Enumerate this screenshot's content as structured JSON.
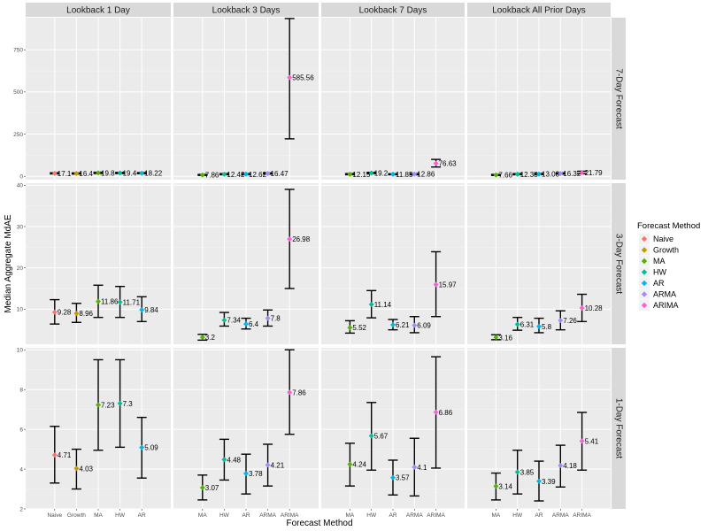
{
  "chart_data": {
    "type": "scatter",
    "title": "",
    "xlabel": "Forecast Method",
    "ylabel": "Median Aggregate MdAE",
    "grid": true,
    "legend": {
      "title": "Forecast Method",
      "position": "right",
      "entries": [
        {
          "name": "Naive",
          "color": "#F8766D"
        },
        {
          "name": "Growth",
          "color": "#C49A00"
        },
        {
          "name": "MA",
          "color": "#53B400"
        },
        {
          "name": "HW",
          "color": "#00C094"
        },
        {
          "name": "AR",
          "color": "#00B6EB"
        },
        {
          "name": "ARMA",
          "color": "#A58AFF"
        },
        {
          "name": "ARIMA",
          "color": "#FB61D7"
        }
      ]
    },
    "columns": [
      {
        "label": "Lookback 1 Day",
        "methods": [
          "Naive",
          "Growth",
          "MA",
          "HW",
          "AR"
        ]
      },
      {
        "label": "Lookback 3 Days",
        "methods": [
          "MA",
          "HW",
          "AR",
          "ARMA",
          "ARIMA"
        ]
      },
      {
        "label": "Lookback 7 Days",
        "methods": [
          "MA",
          "HW",
          "AR",
          "ARMA",
          "ARIMA"
        ]
      },
      {
        "label": "Lookback All Prior Days",
        "methods": [
          "MA",
          "HW",
          "AR",
          "ARMA",
          "ARIMA"
        ]
      }
    ],
    "rows": [
      {
        "label": "7-Day Forecast",
        "ylim": [
          -20,
          940
        ],
        "yticks": [
          0,
          250,
          500,
          750
        ],
        "panels": [
          [
            {
              "m": "Naive",
              "y": 17.1,
              "lo": 14,
              "hi": 21,
              "label": "17.1"
            },
            {
              "m": "Growth",
              "y": 16.4,
              "lo": 13,
              "hi": 20,
              "label": "16.4"
            },
            {
              "m": "MA",
              "y": 19.8,
              "lo": 16,
              "hi": 24,
              "label": "19.8"
            },
            {
              "m": "HW",
              "y": 19.4,
              "lo": 16,
              "hi": 23,
              "label": "19.4"
            },
            {
              "m": "AR",
              "y": 18.22,
              "lo": 15,
              "hi": 22,
              "label": "18.22"
            }
          ],
          [
            {
              "m": "MA",
              "y": 7.86,
              "lo": 5,
              "hi": 11,
              "label": "7.86"
            },
            {
              "m": "HW",
              "y": 12.42,
              "lo": 9,
              "hi": 16,
              "label": "12.42"
            },
            {
              "m": "AR",
              "y": 12.62,
              "lo": 9,
              "hi": 16,
              "label": "12.62"
            },
            {
              "m": "ARMA",
              "y": 16.47,
              "lo": 13,
              "hi": 20,
              "label": "16.47"
            },
            {
              "m": "ARIMA",
              "y": 585.56,
              "lo": 222,
              "hi": 935,
              "label": "585.56"
            }
          ],
          [
            {
              "m": "MA",
              "y": 12.15,
              "lo": 9,
              "hi": 16,
              "label": "12.15"
            },
            {
              "m": "HW",
              "y": 19.2,
              "lo": 16,
              "hi": 23,
              "label": "19.2"
            },
            {
              "m": "AR",
              "y": 11.85,
              "lo": 9,
              "hi": 15,
              "label": "11.85"
            },
            {
              "m": "ARMA",
              "y": 12.86,
              "lo": 9,
              "hi": 16,
              "label": "12.86"
            },
            {
              "m": "ARIMA",
              "y": 76.63,
              "lo": 55,
              "hi": 100,
              "label": "76.63"
            }
          ],
          [
            {
              "m": "MA",
              "y": 7.66,
              "lo": 5,
              "hi": 11,
              "label": "7.66"
            },
            {
              "m": "HW",
              "y": 12.38,
              "lo": 9,
              "hi": 16,
              "label": "12.38"
            },
            {
              "m": "AR",
              "y": 13.08,
              "lo": 10,
              "hi": 17,
              "label": "13.08"
            },
            {
              "m": "ARMA",
              "y": 16.32,
              "lo": 13,
              "hi": 20,
              "label": "16.32"
            },
            {
              "m": "ARIMA",
              "y": 21.79,
              "lo": 15,
              "hi": 30,
              "label": "21.79"
            }
          ]
        ]
      },
      {
        "label": "3-Day Forecast",
        "ylim": [
          1.5,
          40.5
        ],
        "yticks": [
          10,
          20,
          30,
          40
        ],
        "panels": [
          [
            {
              "m": "Naive",
              "y": 9.28,
              "lo": 6.4,
              "hi": 12.3,
              "label": "9.28"
            },
            {
              "m": "Growth",
              "y": 8.96,
              "lo": 6.8,
              "hi": 11.4,
              "label": "8.96"
            },
            {
              "m": "MA",
              "y": 11.86,
              "lo": 8.0,
              "hi": 15.8,
              "label": "11.86"
            },
            {
              "m": "HW",
              "y": 11.71,
              "lo": 8.0,
              "hi": 15.5,
              "label": "11.71"
            },
            {
              "m": "AR",
              "y": 9.84,
              "lo": 7.0,
              "hi": 13.0,
              "label": "9.84"
            }
          ],
          [
            {
              "m": "MA",
              "y": 3.2,
              "lo": 2.5,
              "hi": 3.9,
              "label": "3.2"
            },
            {
              "m": "HW",
              "y": 7.34,
              "lo": 5.9,
              "hi": 9.2,
              "label": "7.34"
            },
            {
              "m": "AR",
              "y": 6.4,
              "lo": 5.2,
              "hi": 7.8,
              "label": "6.4"
            },
            {
              "m": "ARMA",
              "y": 7.8,
              "lo": 5.9,
              "hi": 9.8,
              "label": "7.8"
            },
            {
              "m": "ARIMA",
              "y": 26.98,
              "lo": 15.0,
              "hi": 39.0,
              "label": "26.98"
            }
          ],
          [
            {
              "m": "MA",
              "y": 5.52,
              "lo": 4.2,
              "hi": 7.2,
              "label": "5.52"
            },
            {
              "m": "HW",
              "y": 11.14,
              "lo": 7.9,
              "hi": 14.5,
              "label": "11.14"
            },
            {
              "m": "AR",
              "y": 6.21,
              "lo": 5.0,
              "hi": 7.5,
              "label": "6.21"
            },
            {
              "m": "ARMA",
              "y": 6.09,
              "lo": 4.3,
              "hi": 8.2,
              "label": "6.09"
            },
            {
              "m": "ARIMA",
              "y": 15.97,
              "lo": 8.2,
              "hi": 23.9,
              "label": "15.97"
            }
          ],
          [
            {
              "m": "MA",
              "y": 3.16,
              "lo": 2.6,
              "hi": 3.8,
              "label": "3.16"
            },
            {
              "m": "HW",
              "y": 6.31,
              "lo": 4.9,
              "hi": 8.0,
              "label": "6.31"
            },
            {
              "m": "AR",
              "y": 5.8,
              "lo": 4.3,
              "hi": 7.8,
              "label": "5.8"
            },
            {
              "m": "ARMA",
              "y": 7.26,
              "lo": 5.0,
              "hi": 9.6,
              "label": "7.26"
            },
            {
              "m": "ARIMA",
              "y": 10.28,
              "lo": 7.0,
              "hi": 13.6,
              "label": "10.28"
            }
          ]
        ]
      },
      {
        "label": "1-Day Forecast",
        "ylim": [
          2.0,
          10.1
        ],
        "yticks": [
          2,
          4,
          6,
          8,
          10
        ],
        "panels": [
          [
            {
              "m": "Naive",
              "y": 4.71,
              "lo": 3.3,
              "hi": 6.15,
              "label": "4.71"
            },
            {
              "m": "Growth",
              "y": 4.03,
              "lo": 3.0,
              "hi": 5.0,
              "label": "4.03"
            },
            {
              "m": "MA",
              "y": 7.23,
              "lo": 4.95,
              "hi": 9.5,
              "label": "7.23"
            },
            {
              "m": "HW",
              "y": 7.3,
              "lo": 5.1,
              "hi": 9.5,
              "label": "7.3"
            },
            {
              "m": "AR",
              "y": 5.09,
              "lo": 3.55,
              "hi": 6.6,
              "label": "5.09"
            }
          ],
          [
            {
              "m": "MA",
              "y": 3.07,
              "lo": 2.45,
              "hi": 3.7,
              "label": "3.07"
            },
            {
              "m": "HW",
              "y": 4.48,
              "lo": 3.45,
              "hi": 5.5,
              "label": "4.48"
            },
            {
              "m": "AR",
              "y": 3.78,
              "lo": 2.75,
              "hi": 4.75,
              "label": "3.78"
            },
            {
              "m": "ARMA",
              "y": 4.21,
              "lo": 3.15,
              "hi": 5.25,
              "label": "4.21"
            },
            {
              "m": "ARIMA",
              "y": 7.86,
              "lo": 5.75,
              "hi": 10.0,
              "label": "7.86"
            }
          ],
          [
            {
              "m": "MA",
              "y": 4.24,
              "lo": 3.15,
              "hi": 5.3,
              "label": "4.24"
            },
            {
              "m": "HW",
              "y": 5.67,
              "lo": 3.95,
              "hi": 7.35,
              "label": "5.67"
            },
            {
              "m": "AR",
              "y": 3.57,
              "lo": 2.7,
              "hi": 4.45,
              "label": "3.57"
            },
            {
              "m": "ARMA",
              "y": 4.1,
              "lo": 2.65,
              "hi": 5.55,
              "label": "4.1"
            },
            {
              "m": "ARIMA",
              "y": 6.86,
              "lo": 4.05,
              "hi": 9.65,
              "label": "6.86"
            }
          ],
          [
            {
              "m": "MA",
              "y": 3.14,
              "lo": 2.45,
              "hi": 3.8,
              "label": "3.14"
            },
            {
              "m": "HW",
              "y": 3.85,
              "lo": 2.75,
              "hi": 4.95,
              "label": "3.85"
            },
            {
              "m": "AR",
              "y": 3.39,
              "lo": 2.4,
              "hi": 4.4,
              "label": "3.39"
            },
            {
              "m": "ARMA",
              "y": 4.18,
              "lo": 3.1,
              "hi": 5.2,
              "label": "4.18"
            },
            {
              "m": "ARIMA",
              "y": 5.41,
              "lo": 3.95,
              "hi": 6.85,
              "label": "5.41"
            }
          ]
        ]
      }
    ]
  }
}
